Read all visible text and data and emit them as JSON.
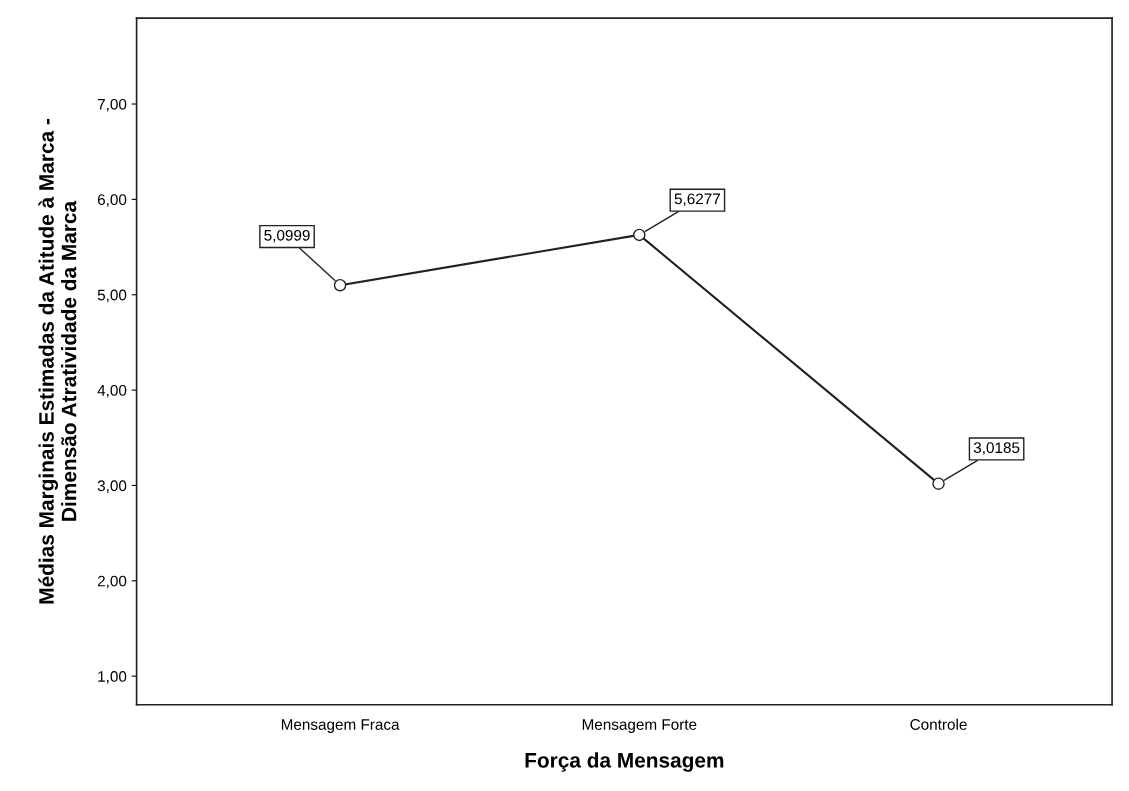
{
  "chart_data": {
    "type": "line",
    "xlabel": "Força da Mensagem",
    "ylabel": "Médias Marginais Estimadas da Atitude à Marca -\nDimensão Atratividade da Marca",
    "categories": [
      "Mensagem Fraca",
      "Mensagem Forte",
      "Controle"
    ],
    "series": [
      {
        "color": "#222222",
        "values": [
          5.0999,
          5.6277,
          3.0185
        ],
        "value_labels": [
          "5,0999",
          "5,6277",
          "3,0185"
        ]
      }
    ],
    "marker": "circle",
    "line_style": "solid",
    "grid": false,
    "legend": false,
    "ylim": [
      0.7,
      7.9
    ],
    "yticks": [
      {
        "value": 1,
        "label": "1,00"
      },
      {
        "value": 2,
        "label": "2,00"
      },
      {
        "value": 3,
        "label": "3,00"
      },
      {
        "value": 4,
        "label": "4,00"
      },
      {
        "value": 5,
        "label": "5,00"
      },
      {
        "value": 6,
        "label": "6,00"
      },
      {
        "value": 7,
        "label": "7,00"
      }
    ]
  }
}
